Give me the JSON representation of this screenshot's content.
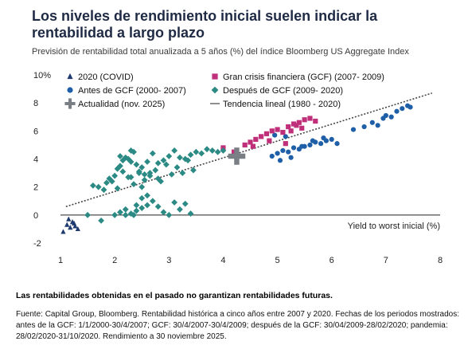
{
  "title": "Los niveles de rendimiento inicial suelen indicar la rentabilidad a largo plazo",
  "subtitle": "Previsión de rentabilidad total anualizada a 5 años (%) del índice Bloomberg US Aggregate Index",
  "disclaimer": "Las rentabilidades obtenidas en el pasado no garantizan rentabilidades futuras.",
  "source": "Fuente: Capital Group, Bloomberg. Rentabilidad histórica a cinco años entre 2007 y 2020. Fechas de los periodos mostrados: antes de la GCF: 1/1/2000-30/4/2007; GCF: 30/4/2007-30/4/2009; después de la GCF: 30/04/2009-28/02/2020; pandemia: 28/02/2020-31/10/2020. Rendimiento a 30 noviembre 2025.",
  "colors": {
    "covid": "#1f3a6e",
    "pre": "#1f5fa8",
    "gfc": "#c0307a",
    "post": "#2c8a85",
    "current": "#7a7f86",
    "trend": "#444444"
  },
  "chart_data": {
    "type": "scatter",
    "xlabel": "Yield to worst inicial (%)",
    "xlim": [
      1,
      8
    ],
    "ylim": [
      -2,
      10
    ],
    "x_ticks": [
      "1",
      "2",
      "3",
      "4",
      "5",
      "6",
      "7",
      "8"
    ],
    "y_ticks": [
      "10%",
      "8",
      "6",
      "4",
      "2",
      "0",
      "-2"
    ],
    "legend": [
      {
        "key": "covid",
        "label": "2020 (COVID)",
        "marker": "triangle"
      },
      {
        "key": "gfc",
        "label": "Gran crisis financiera (GCF) (2007- 2009)",
        "marker": "square"
      },
      {
        "key": "pre",
        "label": "Antes de GCF (2000- 2007)",
        "marker": "circle"
      },
      {
        "key": "post",
        "label": "Después de GCF (2009- 2020)",
        "marker": "diamond"
      },
      {
        "key": "current",
        "label": "Actualidad (nov. 2025)",
        "marker": "plus"
      },
      {
        "key": "trend",
        "label": "Tendencia lineal (1980 - 2020)",
        "marker": "line"
      }
    ],
    "trend": {
      "x": [
        1.1,
        7.85
      ],
      "y": [
        0.6,
        8.7
      ]
    },
    "series": [
      {
        "key": "covid",
        "name": "2020 (COVID)",
        "x": [
          1.05,
          1.12,
          1.18,
          1.22,
          1.27,
          1.32,
          1.15,
          1.25
        ],
        "y": [
          -1.2,
          -0.7,
          -0.9,
          -0.5,
          -0.8,
          -1.0,
          -0.3,
          -0.6
        ]
      },
      {
        "key": "pre",
        "name": "Antes de GCF (2000- 2007)",
        "x": [
          4.9,
          5.0,
          5.1,
          5.2,
          5.3,
          5.4,
          5.5,
          5.6,
          5.7,
          5.8,
          5.9,
          6.0,
          6.1,
          5.05,
          5.25,
          5.45,
          5.65,
          5.85,
          4.95,
          5.15,
          6.4,
          6.6,
          6.75,
          6.85,
          6.95,
          7.0,
          7.1,
          7.2,
          7.3,
          7.4,
          7.45
        ],
        "y": [
          4.2,
          4.4,
          4.6,
          4.5,
          4.8,
          4.7,
          4.9,
          5.0,
          5.2,
          5.1,
          5.3,
          5.4,
          5.1,
          3.9,
          4.1,
          4.9,
          5.3,
          5.5,
          5.7,
          5.6,
          6.1,
          6.3,
          6.6,
          6.4,
          6.9,
          7.1,
          7.0,
          7.4,
          7.6,
          7.8,
          7.7
        ]
      },
      {
        "key": "gfc",
        "name": "Gran crisis financiera (GCF) (2007- 2009)",
        "x": [
          4.0,
          4.2,
          4.4,
          4.5,
          4.6,
          4.7,
          4.8,
          4.9,
          5.0,
          5.1,
          5.2,
          5.3,
          5.4,
          5.5,
          5.6,
          5.7,
          4.55,
          4.85,
          5.15,
          5.45,
          5.25,
          5.35
        ],
        "y": [
          4.8,
          4.5,
          5.0,
          5.2,
          5.4,
          5.6,
          5.8,
          6.0,
          6.1,
          5.9,
          6.3,
          6.5,
          6.6,
          6.8,
          6.9,
          6.7,
          4.9,
          5.3,
          5.1,
          6.2,
          6.0,
          6.4
        ]
      },
      {
        "key": "post",
        "name": "Después de GCF (2009- 2020)",
        "x": [
          1.6,
          1.7,
          1.8,
          1.85,
          1.9,
          2.0,
          2.05,
          2.1,
          2.15,
          2.2,
          2.25,
          2.3,
          2.35,
          2.4,
          2.45,
          2.5,
          2.55,
          2.6,
          2.7,
          2.8,
          2.9,
          3.0,
          3.1,
          3.2,
          3.3,
          3.4,
          3.5,
          3.6,
          3.7,
          3.8,
          3.9,
          4.0,
          2.0,
          2.1,
          2.2,
          2.3,
          2.4,
          2.5,
          2.6,
          2.7,
          2.8,
          2.9,
          3.0,
          3.1,
          3.2,
          3.3,
          3.4,
          2.15,
          2.25,
          2.35,
          2.45,
          2.55,
          2.65,
          2.75,
          2.85,
          2.95,
          3.05,
          3.15,
          3.25,
          3.35,
          3.45,
          1.5,
          1.75,
          1.95,
          2.05,
          2.3,
          2.5,
          2.65,
          2.8,
          2.1,
          2.3,
          2.5,
          2.2,
          2.4,
          2.6,
          2.35
        ],
        "y": [
          2.1,
          2.0,
          1.8,
          2.3,
          2.6,
          2.8,
          3.3,
          3.5,
          3.9,
          4.1,
          4.0,
          3.8,
          4.5,
          3.6,
          3.1,
          3.4,
          2.9,
          3.8,
          4.4,
          3.7,
          3.9,
          4.2,
          4.6,
          4.1,
          4.0,
          4.3,
          4.5,
          4.4,
          4.7,
          4.6,
          4.5,
          4.6,
          0.0,
          0.2,
          0.4,
          0.1,
          0.3,
          0.5,
          0.7,
          1.0,
          0.6,
          0.2,
          0.0,
          0.9,
          0.4,
          0.8,
          0.1,
          3.1,
          2.7,
          2.2,
          3.0,
          2.5,
          2.8,
          3.2,
          2.4,
          3.6,
          2.9,
          3.4,
          3.0,
          3.9,
          3.2,
          0.0,
          -0.4,
          2.4,
          1.9,
          2.7,
          2.0,
          3.0,
          2.6,
          4.2,
          4.6,
          1.2,
          0.0,
          0.7,
          1.4,
          0.0
        ]
      },
      {
        "key": "current",
        "name": "Actualidad (nov. 2025)",
        "x": [
          4.25
        ],
        "y": [
          4.2
        ]
      }
    ]
  }
}
